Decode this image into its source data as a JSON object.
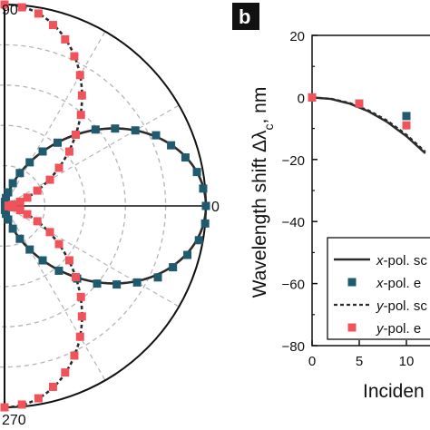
{
  "colors": {
    "teal": "#1f5a6f",
    "red": "#f0535a",
    "line": "#2b2b2b",
    "grid": "#b5b5b5"
  },
  "chart_data": [
    {
      "type": "polar",
      "panel_label": "",
      "angle_labels": [
        "90",
        "0",
        "270"
      ],
      "grid": true,
      "series": [
        {
          "name": "",
          "kind": "x-pol. simulation",
          "style": "solid",
          "shape": "cos^2 lobe toward 0°"
        },
        {
          "name": "",
          "kind": "x-pol. experiment",
          "marker": "square",
          "color": "teal",
          "angles_deg": [
            0,
            5,
            10,
            15,
            20,
            25,
            30,
            35,
            40,
            45,
            50,
            55,
            60,
            65,
            70,
            75,
            80,
            85,
            275,
            280,
            285,
            290,
            295,
            300,
            305,
            310,
            315,
            320,
            325,
            330,
            335,
            340,
            345,
            350,
            355
          ],
          "r": [
            1.0,
            0.99,
            0.97,
            0.93,
            0.88,
            0.83,
            0.75,
            0.67,
            0.59,
            0.5,
            0.41,
            0.33,
            0.25,
            0.18,
            0.12,
            0.07,
            0.04,
            0.02,
            0.02,
            0.04,
            0.07,
            0.12,
            0.18,
            0.25,
            0.33,
            0.42,
            0.51,
            0.6,
            0.68,
            0.76,
            0.84,
            0.89,
            0.94,
            0.98,
            1.0
          ]
        },
        {
          "name": "",
          "kind": "y-pol. simulation",
          "style": "dashed",
          "shape": "sin^2 lobes toward 90° and 270°"
        },
        {
          "name": "",
          "kind": "y-pol. experiment",
          "marker": "square",
          "color": "red",
          "angles_deg": [
            5,
            10,
            15,
            20,
            25,
            30,
            35,
            40,
            45,
            50,
            55,
            60,
            65,
            70,
            75,
            80,
            85,
            90,
            270,
            275,
            280,
            285,
            290,
            295,
            300,
            305,
            310,
            315,
            320,
            325,
            330,
            335,
            340,
            345,
            350,
            355
          ],
          "r": [
            0.02,
            0.04,
            0.08,
            0.12,
            0.18,
            0.26,
            0.33,
            0.42,
            0.5,
            0.59,
            0.67,
            0.75,
            0.82,
            0.88,
            0.93,
            0.97,
            0.99,
            1.0,
            1.0,
            0.99,
            0.97,
            0.93,
            0.88,
            0.82,
            0.75,
            0.67,
            0.59,
            0.5,
            0.42,
            0.33,
            0.26,
            0.18,
            0.12,
            0.08,
            0.04,
            0.02
          ]
        }
      ]
    },
    {
      "type": "line",
      "panel_label": "b",
      "xlabel": "Inciden",
      "ylabel": "Wavelength shift Δλ",
      "ylabel_sub": "c",
      "ylabel_unit": ", nm",
      "xlim": [
        0,
        12.5
      ],
      "ylim": [
        -80,
        20
      ],
      "x_ticks": [
        0,
        5,
        10
      ],
      "x_tick_labels": [
        "0",
        "5",
        "10"
      ],
      "y_ticks": [
        20,
        0,
        -20,
        -40,
        -60,
        -80
      ],
      "y_tick_labels": [
        "20",
        "0",
        "−20",
        "−40",
        "−60",
        "−80"
      ],
      "legend_position": "bottom-right",
      "series": [
        {
          "name": "x-pol. sc",
          "legend_italic": "x",
          "legend_rest": "-pol. sc",
          "style": "solid",
          "x": [
            0,
            2,
            4,
            6,
            8,
            10,
            12
          ],
          "y": [
            0,
            -0.5,
            -2,
            -4.5,
            -8,
            -12.5,
            -18
          ]
        },
        {
          "name": "x-pol. ex",
          "legend_italic": "x",
          "legend_rest": "-pol. e",
          "style": "marker",
          "color": "teal",
          "x": [
            0,
            5,
            10
          ],
          "y": [
            0,
            -2,
            -6
          ]
        },
        {
          "name": "y-pol. sc",
          "legend_italic": "y",
          "legend_rest": "-pol. sc",
          "style": "dashed",
          "x": [
            0,
            2,
            4,
            6,
            8,
            10,
            12
          ],
          "y": [
            0,
            -0.4,
            -1.8,
            -4.2,
            -7.5,
            -12,
            -17.5
          ]
        },
        {
          "name": "y-pol. ex",
          "legend_italic": "y",
          "legend_rest": "-pol. e",
          "style": "marker",
          "color": "red",
          "x": [
            0,
            5,
            10
          ],
          "y": [
            0,
            -2,
            -9
          ]
        }
      ]
    }
  ]
}
